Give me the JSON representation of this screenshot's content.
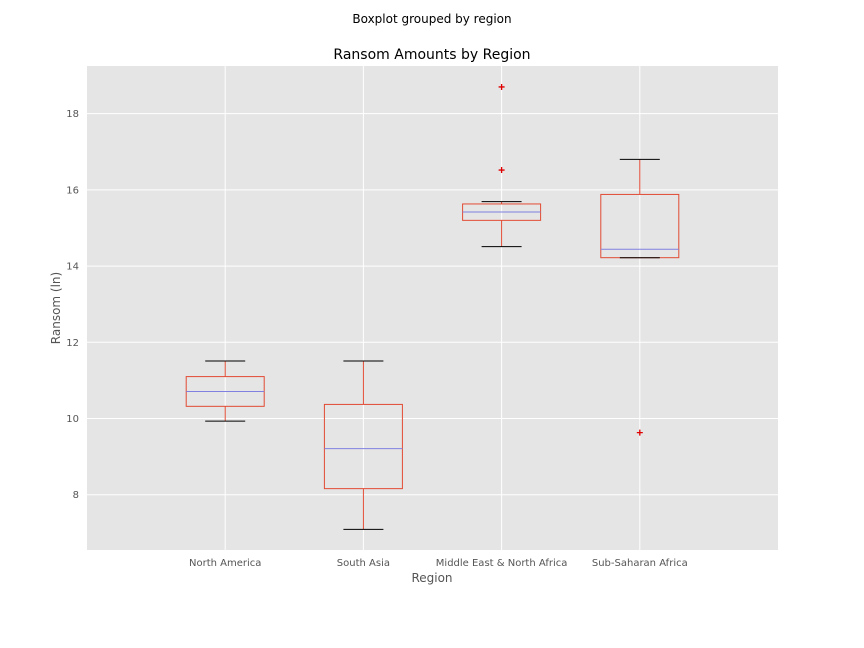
{
  "chart_data": {
    "type": "boxplot",
    "suptitle": "Boxplot grouped by region",
    "title": "Ransom Amounts by Region",
    "xlabel": "Region",
    "ylabel": "Ransom (ln)",
    "ylim": [
      6.55,
      19.25
    ],
    "yticks": [
      8,
      10,
      12,
      14,
      16,
      18
    ],
    "grid": true,
    "categories": [
      "North America",
      "South Asia",
      "Middle East & North Africa",
      "Sub-Saharan Africa"
    ],
    "boxes": [
      {
        "category": "North America",
        "whisker_low": 9.93,
        "q1": 10.32,
        "median": 10.71,
        "q3": 11.1,
        "whisker_high": 11.51,
        "outliers": []
      },
      {
        "category": "South Asia",
        "whisker_low": 7.09,
        "q1": 8.16,
        "median": 9.21,
        "q3": 10.37,
        "whisker_high": 11.51,
        "outliers": []
      },
      {
        "category": "Middle East & North Africa",
        "whisker_low": 14.51,
        "q1": 15.2,
        "median": 15.42,
        "q3": 15.63,
        "whisker_high": 15.69,
        "outliers": [
          16.52,
          18.7
        ]
      },
      {
        "category": "Sub-Saharan Africa",
        "whisker_low": 14.22,
        "q1": 14.22,
        "median": 14.44,
        "q3": 15.88,
        "whisker_high": 16.8,
        "outliers": [
          9.63
        ]
      }
    ],
    "colors": {
      "background": "#E5E5E5",
      "grid": "#FFFFFF",
      "box": "#E24A33",
      "median": "#8EBA42",
      "median_line": "#8080E0",
      "cap": "#000000",
      "outlier": "#E00000"
    }
  }
}
